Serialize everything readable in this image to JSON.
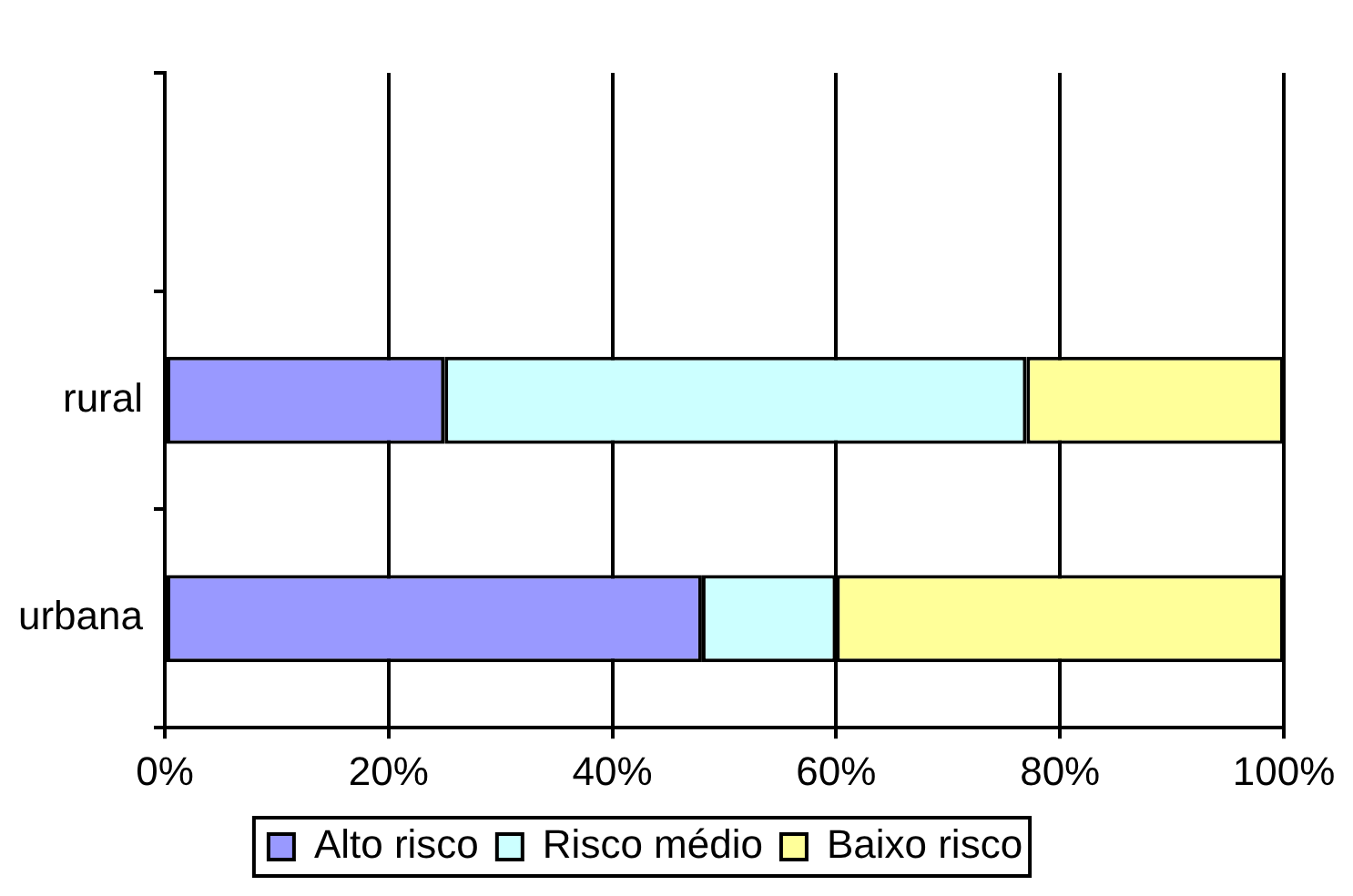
{
  "chart_data": {
    "type": "bar",
    "orientation": "horizontal",
    "stacked": true,
    "categories": [
      null,
      "rural",
      "urbana"
    ],
    "series": [
      {
        "name": "Alto risco",
        "color": "#9999ff",
        "values": [
          null,
          25,
          48
        ]
      },
      {
        "name": "Risco médio",
        "color": "#ccffff",
        "values": [
          null,
          52,
          12
        ]
      },
      {
        "name": "Baixo risco",
        "color": "#ffff99",
        "values": [
          null,
          23,
          40
        ]
      }
    ],
    "xlim": [
      0,
      100
    ],
    "xticks": [
      {
        "value": 0,
        "label": "0%"
      },
      {
        "value": 20,
        "label": "20%"
      },
      {
        "value": 40,
        "label": "40%"
      },
      {
        "value": 60,
        "label": "60%"
      },
      {
        "value": 80,
        "label": "80%"
      },
      {
        "value": 100,
        "label": "100%"
      }
    ],
    "grid": "x",
    "legend": "bottom"
  }
}
